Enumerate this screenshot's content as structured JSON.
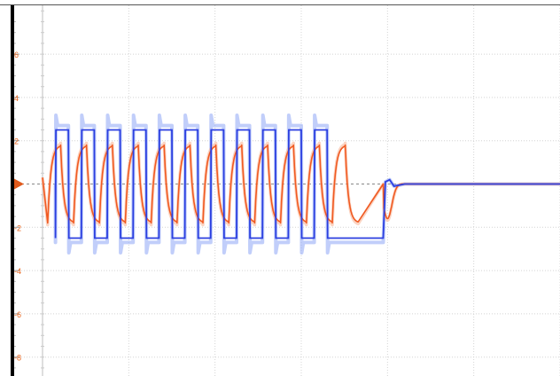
{
  "chart_data": {
    "type": "line",
    "title": "",
    "xlabel": "",
    "ylabel": "",
    "ylim": [
      -8.8,
      8.2
    ],
    "xlim": [
      0,
      12
    ],
    "grid": true,
    "y_ticks": [
      {
        "value": 6,
        "label": "6"
      },
      {
        "value": 4,
        "label": "4"
      },
      {
        "value": 2,
        "label": "2"
      },
      {
        "value": 0,
        "label": "0"
      },
      {
        "value": -2,
        "label": "-2"
      },
      {
        "value": -4,
        "label": "-4"
      },
      {
        "value": -6,
        "label": "-6"
      },
      {
        "value": -8,
        "label": "-8"
      }
    ],
    "x_gridlines": [
      0,
      2,
      4,
      6,
      8,
      10,
      12
    ],
    "square_wave": {
      "start": 0.3,
      "period": 0.6,
      "cycles": 11,
      "end": 7.9,
      "amplitude": 2.5,
      "overshoot": 2.8,
      "decay_end": 8.4
    },
    "response_wave": {
      "start": 0.0,
      "period": 0.6,
      "cycles": 12,
      "end": 7.9,
      "amplitude": 1.8,
      "undershoot": -1.6,
      "decay_end": 8.5
    },
    "trigger_level": 0,
    "colors": {
      "square": "#2b3fe0",
      "square_ghost": "#9fb3f7",
      "response": "#f05a22",
      "response_ghost": "#f8b79a",
      "grid": "#d4d4d4",
      "axis": "#000000",
      "tick_label": "#e8651d",
      "zero_line": "#888888",
      "trigger_marker": "#e05a1c"
    }
  }
}
